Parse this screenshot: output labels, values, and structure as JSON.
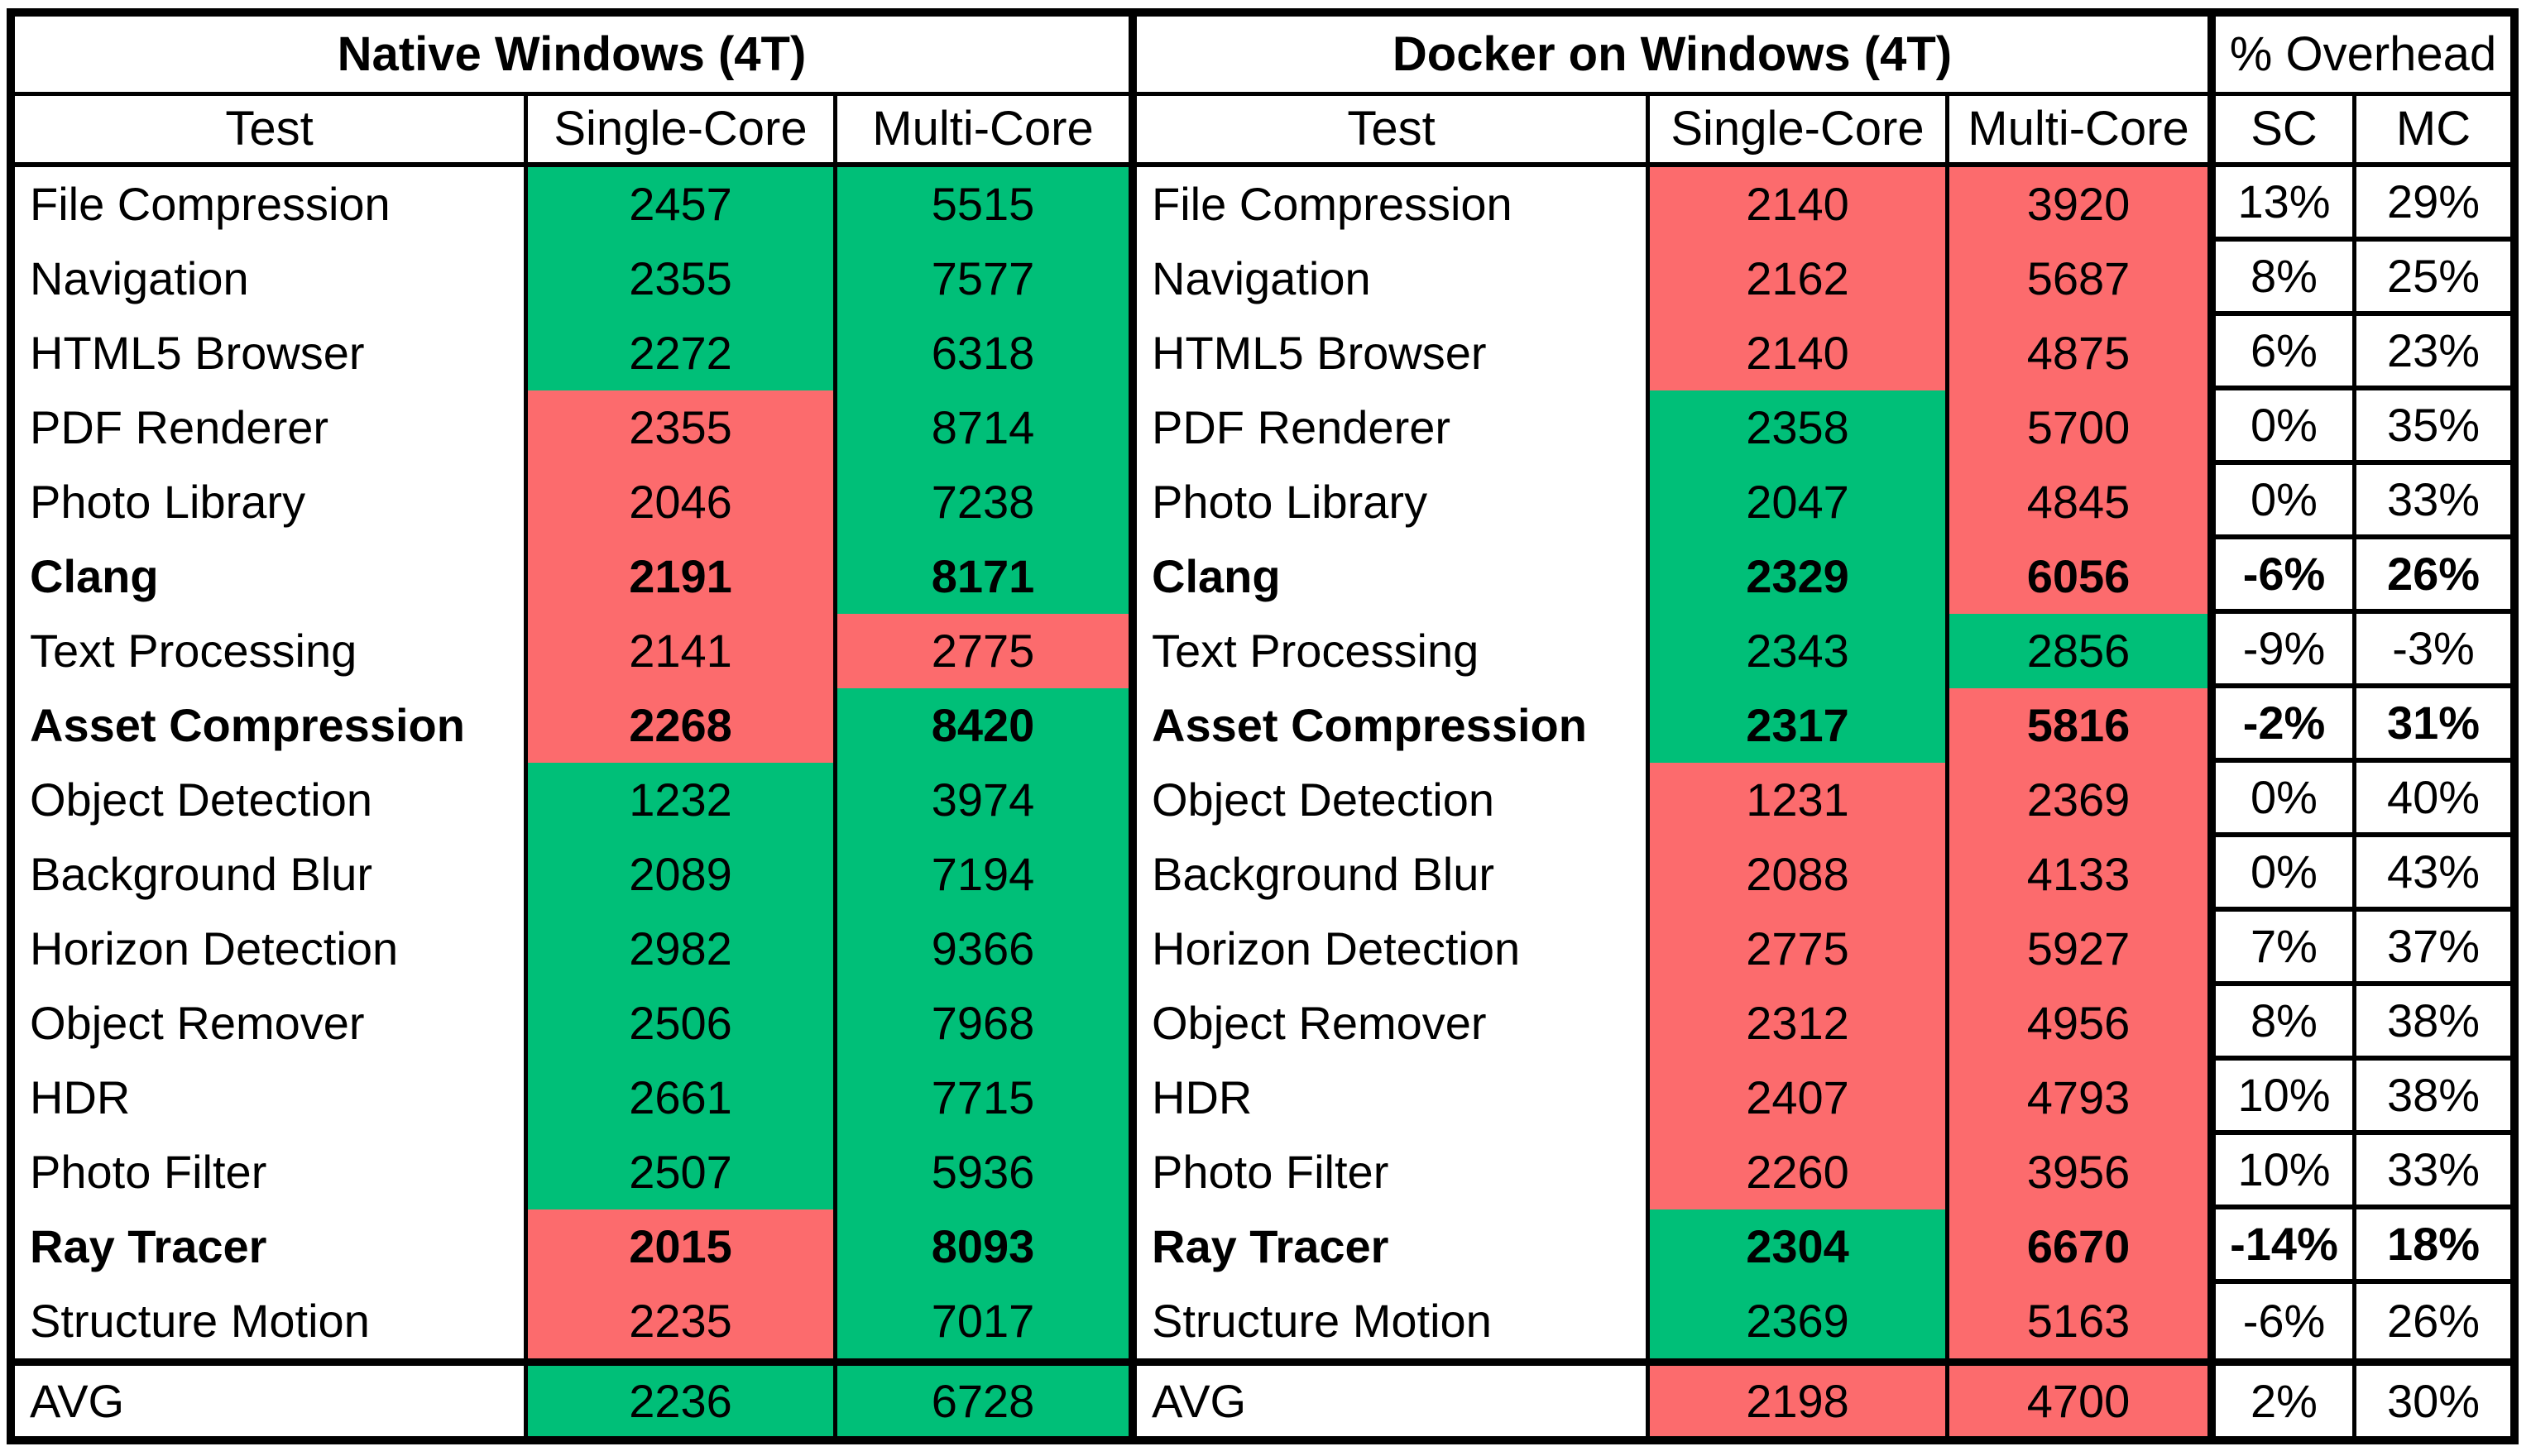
{
  "header": {
    "native_title": "Native Windows (4T)",
    "docker_title": "Docker on Windows (4T)",
    "overhead_title": "% Overhead",
    "test_col": "Test",
    "single_core_col": "Single-Core",
    "multi_core_col": "Multi-Core",
    "overhead_sc_col": "SC",
    "overhead_mc_col": "MC"
  },
  "colors": {
    "green": "#00BF78",
    "red": "#FC6B6D",
    "white": "#FFFFFF"
  },
  "chart_data": {
    "type": "table",
    "sections": [
      "Native Windows (4T)",
      "Docker on Windows (4T)",
      "% Overhead"
    ],
    "columns": [
      "Test",
      "Native Single-Core",
      "Native Multi-Core",
      "Docker Single-Core",
      "Docker Multi-Core",
      "SC Overhead",
      "MC Overhead"
    ],
    "cell_color_legend": {
      "green": "better score",
      "red": "worse score"
    },
    "rows": [
      {
        "test": "File Compression",
        "bold": false,
        "n_sc": 2457,
        "n_sc_c": "green",
        "n_mc": 5515,
        "n_mc_c": "green",
        "d_sc": 2140,
        "d_sc_c": "red",
        "d_mc": 3920,
        "d_mc_c": "red",
        "o_sc": "13%",
        "o_mc": "29%"
      },
      {
        "test": "Navigation",
        "bold": false,
        "n_sc": 2355,
        "n_sc_c": "green",
        "n_mc": 7577,
        "n_mc_c": "green",
        "d_sc": 2162,
        "d_sc_c": "red",
        "d_mc": 5687,
        "d_mc_c": "red",
        "o_sc": "8%",
        "o_mc": "25%"
      },
      {
        "test": "HTML5 Browser",
        "bold": false,
        "n_sc": 2272,
        "n_sc_c": "green",
        "n_mc": 6318,
        "n_mc_c": "green",
        "d_sc": 2140,
        "d_sc_c": "red",
        "d_mc": 4875,
        "d_mc_c": "red",
        "o_sc": "6%",
        "o_mc": "23%"
      },
      {
        "test": "PDF Renderer",
        "bold": false,
        "n_sc": 2355,
        "n_sc_c": "red",
        "n_mc": 8714,
        "n_mc_c": "green",
        "d_sc": 2358,
        "d_sc_c": "green",
        "d_mc": 5700,
        "d_mc_c": "red",
        "o_sc": "0%",
        "o_mc": "35%"
      },
      {
        "test": "Photo Library",
        "bold": false,
        "n_sc": 2046,
        "n_sc_c": "red",
        "n_mc": 7238,
        "n_mc_c": "green",
        "d_sc": 2047,
        "d_sc_c": "green",
        "d_mc": 4845,
        "d_mc_c": "red",
        "o_sc": "0%",
        "o_mc": "33%"
      },
      {
        "test": "Clang",
        "bold": true,
        "n_sc": 2191,
        "n_sc_c": "red",
        "n_mc": 8171,
        "n_mc_c": "green",
        "d_sc": 2329,
        "d_sc_c": "green",
        "d_mc": 6056,
        "d_mc_c": "red",
        "o_sc": "-6%",
        "o_mc": "26%"
      },
      {
        "test": "Text Processing",
        "bold": false,
        "n_sc": 2141,
        "n_sc_c": "red",
        "n_mc": 2775,
        "n_mc_c": "red",
        "d_sc": 2343,
        "d_sc_c": "green",
        "d_mc": 2856,
        "d_mc_c": "green",
        "o_sc": "-9%",
        "o_mc": "-3%"
      },
      {
        "test": "Asset Compression",
        "bold": true,
        "n_sc": 2268,
        "n_sc_c": "red",
        "n_mc": 8420,
        "n_mc_c": "green",
        "d_sc": 2317,
        "d_sc_c": "green",
        "d_mc": 5816,
        "d_mc_c": "red",
        "o_sc": "-2%",
        "o_mc": "31%"
      },
      {
        "test": "Object Detection",
        "bold": false,
        "n_sc": 1232,
        "n_sc_c": "green",
        "n_mc": 3974,
        "n_mc_c": "green",
        "d_sc": 1231,
        "d_sc_c": "red",
        "d_mc": 2369,
        "d_mc_c": "red",
        "o_sc": "0%",
        "o_mc": "40%"
      },
      {
        "test": "Background Blur",
        "bold": false,
        "n_sc": 2089,
        "n_sc_c": "green",
        "n_mc": 7194,
        "n_mc_c": "green",
        "d_sc": 2088,
        "d_sc_c": "red",
        "d_mc": 4133,
        "d_mc_c": "red",
        "o_sc": "0%",
        "o_mc": "43%"
      },
      {
        "test": "Horizon Detection",
        "bold": false,
        "n_sc": 2982,
        "n_sc_c": "green",
        "n_mc": 9366,
        "n_mc_c": "green",
        "d_sc": 2775,
        "d_sc_c": "red",
        "d_mc": 5927,
        "d_mc_c": "red",
        "o_sc": "7%",
        "o_mc": "37%"
      },
      {
        "test": "Object Remover",
        "bold": false,
        "n_sc": 2506,
        "n_sc_c": "green",
        "n_mc": 7968,
        "n_mc_c": "green",
        "d_sc": 2312,
        "d_sc_c": "red",
        "d_mc": 4956,
        "d_mc_c": "red",
        "o_sc": "8%",
        "o_mc": "38%"
      },
      {
        "test": "HDR",
        "bold": false,
        "n_sc": 2661,
        "n_sc_c": "green",
        "n_mc": 7715,
        "n_mc_c": "green",
        "d_sc": 2407,
        "d_sc_c": "red",
        "d_mc": 4793,
        "d_mc_c": "red",
        "o_sc": "10%",
        "o_mc": "38%"
      },
      {
        "test": "Photo Filter",
        "bold": false,
        "n_sc": 2507,
        "n_sc_c": "green",
        "n_mc": 5936,
        "n_mc_c": "green",
        "d_sc": 2260,
        "d_sc_c": "red",
        "d_mc": 3956,
        "d_mc_c": "red",
        "o_sc": "10%",
        "o_mc": "33%"
      },
      {
        "test": "Ray Tracer",
        "bold": true,
        "n_sc": 2015,
        "n_sc_c": "red",
        "n_mc": 8093,
        "n_mc_c": "green",
        "d_sc": 2304,
        "d_sc_c": "green",
        "d_mc": 6670,
        "d_mc_c": "red",
        "o_sc": "-14%",
        "o_mc": "18%"
      },
      {
        "test": "Structure Motion",
        "bold": false,
        "n_sc": 2235,
        "n_sc_c": "red",
        "n_mc": 7017,
        "n_mc_c": "green",
        "d_sc": 2369,
        "d_sc_c": "green",
        "d_mc": 5163,
        "d_mc_c": "red",
        "o_sc": "-6%",
        "o_mc": "26%"
      },
      {
        "test": "AVG",
        "bold": false,
        "n_sc": 2236,
        "n_sc_c": "green",
        "n_mc": 6728,
        "n_mc_c": "green",
        "d_sc": 2198,
        "d_sc_c": "red",
        "d_mc": 4700,
        "d_mc_c": "red",
        "o_sc": "2%",
        "o_mc": "30%"
      }
    ]
  }
}
